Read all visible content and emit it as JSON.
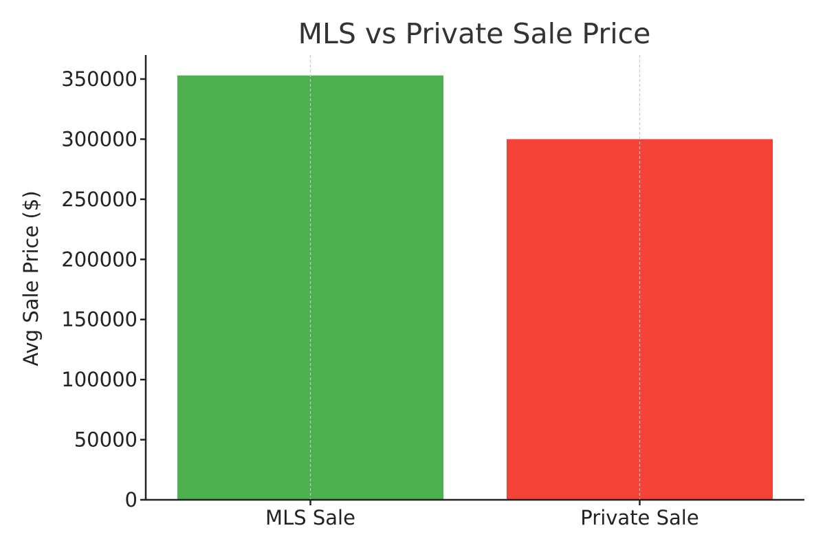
{
  "chart_data": {
    "type": "bar",
    "title": "MLS vs Private Sale Price",
    "xlabel": "",
    "ylabel": "Avg Sale Price ($)",
    "categories": [
      "MLS Sale",
      "Private Sale"
    ],
    "values": [
      353000,
      300000
    ],
    "colors": [
      "#4caf50",
      "#f44336"
    ],
    "ylim": [
      0,
      370000
    ],
    "yticks": [
      0,
      50000,
      100000,
      150000,
      200000,
      250000,
      300000,
      350000
    ],
    "ytick_labels": [
      "0",
      "50000",
      "100000",
      "150000",
      "200000",
      "250000",
      "300000",
      "350000"
    ],
    "grid": {
      "x": true,
      "y": false
    },
    "legend": "none"
  }
}
